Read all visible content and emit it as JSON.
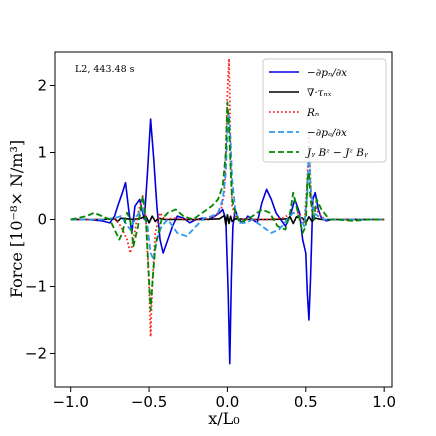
{
  "chart_data": {
    "type": "line",
    "annotation": "L2, 443.48 s",
    "xlabel": "x/L₀",
    "ylabel": "Force [10⁻⁸× N/m³]",
    "xlim": [
      -1.1,
      1.05
    ],
    "ylim": [
      -2.5,
      2.5
    ],
    "xticks": [
      -1.0,
      -0.5,
      0.0,
      0.5,
      1.0
    ],
    "xtick_labels": [
      "−1.0",
      "−0.5",
      "0.0",
      "0.5",
      "1.0"
    ],
    "yticks": [
      -2,
      -1,
      0,
      1,
      2
    ],
    "ytick_labels": [
      "−2",
      "−1",
      "0",
      "1",
      "2"
    ],
    "legend_position": "top-right",
    "series": [
      {
        "name": "−∂pₙ/∂x",
        "color": "#0000dd",
        "dash": "solid",
        "x": [
          -1.0,
          -0.9,
          -0.8,
          -0.75,
          -0.72,
          -0.7,
          -0.67,
          -0.65,
          -0.63,
          -0.61,
          -0.59,
          -0.56,
          -0.53,
          -0.51,
          -0.49,
          -0.47,
          -0.45,
          -0.43,
          -0.41,
          -0.38,
          -0.35,
          -0.32,
          -0.28,
          -0.24,
          -0.2,
          -0.16,
          -0.12,
          -0.08,
          -0.05,
          -0.03,
          -0.01,
          0.005,
          0.015,
          0.025,
          0.035,
          0.05,
          0.07,
          0.1,
          0.13,
          0.16,
          0.19,
          0.22,
          0.25,
          0.28,
          0.31,
          0.34,
          0.37,
          0.4,
          0.43,
          0.46,
          0.48,
          0.5,
          0.51,
          0.52,
          0.53,
          0.545,
          0.56,
          0.58,
          0.6,
          0.63,
          0.67,
          0.72,
          0.8,
          0.9,
          1.0
        ],
        "y": [
          0.0,
          0.0,
          -0.02,
          -0.05,
          0.05,
          0.2,
          0.4,
          0.55,
          0.15,
          -0.2,
          0.2,
          0.3,
          0.0,
          0.7,
          1.5,
          0.9,
          0.2,
          -0.3,
          -0.5,
          -0.3,
          -0.1,
          0.05,
          0.02,
          -0.05,
          0.0,
          0.02,
          0.0,
          0.05,
          0.1,
          0.15,
          0.0,
          -1.1,
          -2.15,
          -0.9,
          -0.1,
          0.15,
          0.0,
          -0.05,
          0.05,
          0.0,
          -0.05,
          0.25,
          0.45,
          0.3,
          0.1,
          0.0,
          -0.1,
          0.05,
          0.3,
          0.1,
          -0.3,
          -0.5,
          -1.1,
          -1.5,
          -0.9,
          0.3,
          0.4,
          0.15,
          0.02,
          -0.02,
          0.0,
          0.0,
          0.0,
          0.0,
          0.0
        ]
      },
      {
        "name": "∇·τₙₓ",
        "color": "#000000",
        "dash": "solid",
        "x": [
          -1.0,
          -0.8,
          -0.72,
          -0.7,
          -0.68,
          -0.6,
          -0.55,
          -0.52,
          -0.5,
          -0.48,
          -0.46,
          -0.44,
          -0.4,
          -0.3,
          -0.15,
          -0.05,
          -0.02,
          -0.01,
          0.0,
          0.01,
          0.02,
          0.03,
          0.05,
          0.15,
          0.3,
          0.38,
          0.4,
          0.42,
          0.44,
          0.48,
          0.5,
          0.52,
          0.54,
          0.56,
          0.6,
          0.8,
          1.0
        ],
        "y": [
          0.0,
          0.0,
          0.01,
          -0.03,
          0.02,
          0.0,
          0.02,
          0.05,
          -0.05,
          0.05,
          -0.03,
          0.02,
          0.0,
          0.0,
          0.0,
          0.01,
          0.06,
          -0.08,
          0.07,
          -0.06,
          0.05,
          -0.03,
          0.01,
          0.0,
          0.0,
          0.01,
          0.04,
          -0.06,
          0.04,
          0.02,
          -0.05,
          0.04,
          -0.03,
          0.02,
          0.0,
          0.0,
          0.0
        ]
      },
      {
        "name": "Rₙ",
        "color": "#ff2020",
        "dash": "dotted",
        "x": [
          -1.0,
          -0.8,
          -0.72,
          -0.68,
          -0.64,
          -0.62,
          -0.6,
          -0.57,
          -0.54,
          -0.52,
          -0.5,
          -0.49,
          -0.48,
          -0.46,
          -0.43,
          -0.4,
          -0.35,
          -0.25,
          -0.15,
          -0.08,
          -0.04,
          -0.02,
          -0.01,
          0.0,
          0.01,
          0.015,
          0.02,
          0.03,
          0.05,
          0.08,
          0.15,
          0.25,
          0.35,
          0.42,
          0.46,
          0.49,
          0.51,
          0.52,
          0.53,
          0.54,
          0.56,
          0.58,
          0.62,
          0.7,
          0.8,
          1.0
        ],
        "y": [
          0.0,
          0.0,
          0.02,
          -0.1,
          -0.3,
          -0.5,
          -0.3,
          0.1,
          0.35,
          0.0,
          -1.0,
          -1.75,
          -1.0,
          -0.2,
          0.1,
          0.0,
          0.02,
          0.0,
          0.0,
          0.05,
          0.15,
          0.4,
          1.0,
          1.9,
          2.4,
          1.9,
          0.8,
          0.2,
          0.05,
          0.0,
          0.0,
          0.0,
          0.02,
          0.1,
          0.1,
          -0.1,
          0.6,
          1.3,
          0.6,
          0.1,
          0.2,
          0.1,
          0.0,
          0.0,
          0.0,
          0.0
        ]
      },
      {
        "name": "−∂pₑ/∂x",
        "color": "#3399ee",
        "dash": "dashed",
        "x": [
          -1.0,
          -0.9,
          -0.8,
          -0.72,
          -0.68,
          -0.65,
          -0.62,
          -0.58,
          -0.54,
          -0.51,
          -0.49,
          -0.47,
          -0.45,
          -0.42,
          -0.38,
          -0.32,
          -0.26,
          -0.2,
          -0.15,
          -0.1,
          -0.06,
          -0.03,
          -0.01,
          0.0,
          0.01,
          0.02,
          0.03,
          0.05,
          0.08,
          0.12,
          0.16,
          0.22,
          0.28,
          0.33,
          0.38,
          0.42,
          0.46,
          0.49,
          0.51,
          0.52,
          0.53,
          0.55,
          0.58,
          0.62,
          0.7,
          0.8,
          1.0
        ],
        "y": [
          0.0,
          0.0,
          0.0,
          0.02,
          0.05,
          -0.05,
          -0.15,
          0.05,
          0.15,
          -0.1,
          -0.5,
          -0.6,
          -0.3,
          -0.1,
          0.0,
          -0.2,
          -0.25,
          -0.1,
          0.02,
          0.05,
          0.1,
          0.3,
          0.7,
          1.35,
          1.55,
          1.2,
          0.6,
          0.15,
          -0.05,
          -0.05,
          0.0,
          -0.1,
          -0.2,
          -0.15,
          0.0,
          0.1,
          0.05,
          -0.1,
          0.4,
          1.1,
          0.5,
          0.1,
          0.05,
          0.0,
          0.0,
          0.0,
          0.0
        ]
      },
      {
        "name": "Jᵧ Bᶻ − Jᶻ Bᵧ",
        "color": "#008800",
        "dash": "dashed",
        "x": [
          -1.0,
          -0.9,
          -0.85,
          -0.8,
          -0.75,
          -0.72,
          -0.69,
          -0.67,
          -0.64,
          -0.62,
          -0.6,
          -0.57,
          -0.54,
          -0.52,
          -0.5,
          -0.49,
          -0.48,
          -0.46,
          -0.44,
          -0.42,
          -0.38,
          -0.33,
          -0.28,
          -0.22,
          -0.16,
          -0.1,
          -0.06,
          -0.03,
          -0.01,
          0.0,
          0.01,
          0.02,
          0.03,
          0.05,
          0.08,
          0.12,
          0.16,
          0.22,
          0.27,
          0.32,
          0.37,
          0.4,
          0.42,
          0.44,
          0.46,
          0.48,
          0.5,
          0.51,
          0.52,
          0.53,
          0.55,
          0.57,
          0.6,
          0.65,
          0.7,
          0.8,
          0.9,
          1.0
        ],
        "y": [
          0.0,
          0.05,
          0.1,
          0.05,
          0.0,
          -0.15,
          -0.3,
          -0.2,
          0.1,
          0.0,
          -0.4,
          -0.1,
          0.35,
          0.0,
          -0.9,
          -1.35,
          -1.0,
          -0.4,
          -0.2,
          0.0,
          0.1,
          0.15,
          0.05,
          0.0,
          0.1,
          0.2,
          0.3,
          0.5,
          1.0,
          1.75,
          1.4,
          0.8,
          0.3,
          0.1,
          -0.05,
          0.0,
          0.05,
          0.15,
          0.1,
          -0.1,
          -0.15,
          0.1,
          0.4,
          0.2,
          0.0,
          -0.2,
          -0.1,
          0.6,
          0.7,
          0.3,
          0.0,
          0.3,
          0.15,
          0.0,
          0.0,
          -0.02,
          0.0,
          0.0
        ]
      }
    ]
  }
}
